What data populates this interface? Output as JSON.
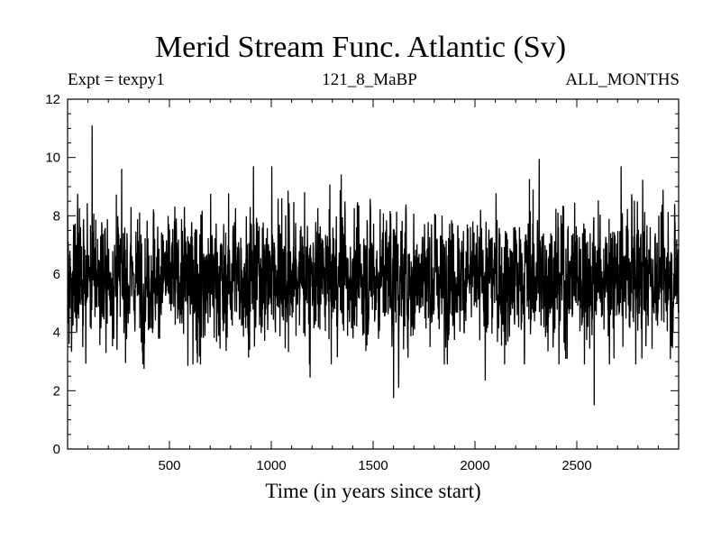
{
  "chart_data": {
    "type": "line",
    "title": "Merid Stream Func. Atlantic (Sv)",
    "subtitle_left": "Expt = texpy1",
    "subtitle_center": "121_8_MaBP",
    "subtitle_right": "ALL_MONTHS",
    "xlabel": "Time (in years since start)",
    "ylabel": "",
    "xlim": [
      0,
      3000
    ],
    "ylim": [
      0,
      12
    ],
    "xticks": [
      500,
      1000,
      1500,
      2000,
      2500
    ],
    "yticks": [
      0,
      2,
      4,
      6,
      8,
      10,
      12
    ],
    "grid": false,
    "series_summary": {
      "n_points": 3000,
      "mean": 5.9,
      "typical_range": [
        4.3,
        7.5
      ],
      "color": "#000000"
    },
    "notable_points": [
      {
        "x": 120,
        "y": 11.1
      },
      {
        "x": 1600,
        "y": 1.75
      },
      {
        "x": 1625,
        "y": 2.1
      },
      {
        "x": 2585,
        "y": 1.5
      },
      {
        "x": 2315,
        "y": 9.95
      },
      {
        "x": 1190,
        "y": 2.45
      },
      {
        "x": 2050,
        "y": 2.35
      },
      {
        "x": 375,
        "y": 2.75
      },
      {
        "x": 590,
        "y": 2.85
      }
    ]
  }
}
